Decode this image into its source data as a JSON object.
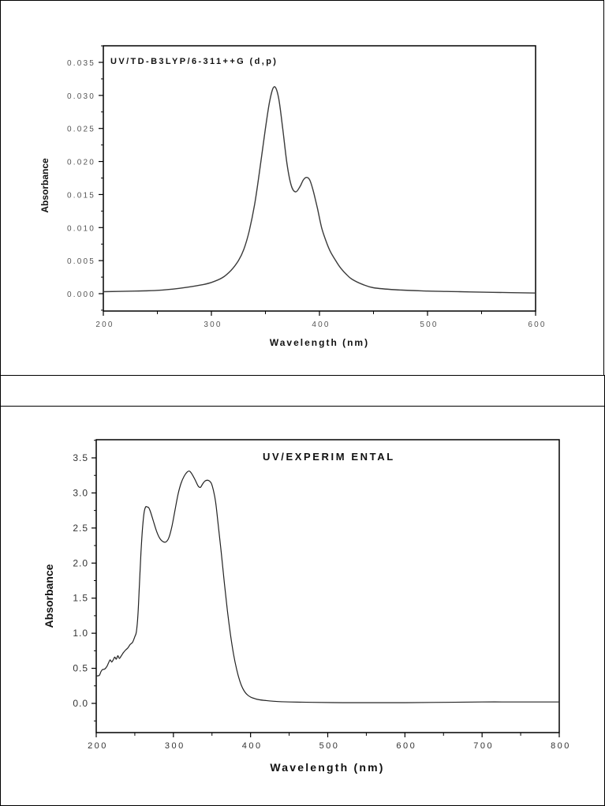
{
  "chart_data": [
    {
      "type": "line",
      "title": "UV/TD-B3LYP/6-311++G(d,p)",
      "annotation": "UV/TD-B3LYP/6-311++G (d,p)",
      "xlabel": "Wavelength (nm)",
      "ylabel": "Absorbance",
      "xlim": [
        200,
        600
      ],
      "ylim": [
        -0.0026,
        0.0375
      ],
      "xticks": [
        200,
        300,
        400,
        500,
        600
      ],
      "xtick_labels": [
        "200",
        "300",
        "400",
        "500",
        "600"
      ],
      "yticks": [
        0.0,
        0.005,
        0.01,
        0.015,
        0.02,
        0.025,
        0.03,
        0.035
      ],
      "ytick_labels": [
        "0.000",
        "0.005",
        "0.010",
        "0.015",
        "0.020",
        "0.025",
        "0.030",
        "0.035"
      ],
      "grid": false,
      "legend": null,
      "series": [
        {
          "name": "UV/TD-B3LYP/6-311++G(d,p)",
          "x": [
            200,
            230,
            250,
            270,
            290,
            300,
            310,
            318,
            325,
            330,
            335,
            340,
            345,
            350,
            354,
            358,
            362,
            366,
            370,
            374,
            378,
            382,
            385,
            388,
            391,
            394,
            398,
            402,
            406,
            410,
            415,
            420,
            425,
            430,
            440,
            450,
            470,
            500,
            530,
            560,
            600
          ],
          "values": [
            0.0003,
            0.0004,
            0.0005,
            0.0008,
            0.0013,
            0.0017,
            0.0024,
            0.0035,
            0.005,
            0.0067,
            0.0095,
            0.0135,
            0.019,
            0.025,
            0.0292,
            0.0313,
            0.0298,
            0.025,
            0.0196,
            0.0163,
            0.0154,
            0.0162,
            0.0172,
            0.0176,
            0.0172,
            0.0157,
            0.013,
            0.01,
            0.008,
            0.0064,
            0.005,
            0.0038,
            0.0029,
            0.0022,
            0.0014,
            0.0009,
            0.0006,
            0.0004,
            0.0003,
            0.0002,
            0.0001
          ]
        }
      ]
    },
    {
      "type": "line",
      "title": "UV/EXPERIMENTAL",
      "annotation": "UV/EXPERIM ENTAL",
      "xlabel": "Wavelength (nm)",
      "ylabel": "Absorbance",
      "xlim": [
        200,
        800
      ],
      "ylim": [
        -0.42,
        3.76
      ],
      "xticks": [
        200,
        300,
        400,
        500,
        600,
        700,
        800
      ],
      "xtick_labels": [
        "200",
        "300",
        "400",
        "500",
        "600",
        "700",
        "800"
      ],
      "yticks": [
        0.0,
        0.5,
        1.0,
        1.5,
        2.0,
        2.5,
        3.0,
        3.5
      ],
      "ytick_labels": [
        "0.0",
        "0.5",
        "1.0",
        "1.5",
        "2.0",
        "2.5",
        "3.0",
        "3.5"
      ],
      "grid": false,
      "legend": null,
      "series": [
        {
          "name": "UV/EXPERIMENTAL",
          "x": [
            200,
            204,
            206,
            208,
            211,
            214,
            216,
            218,
            220,
            222,
            224,
            226,
            228,
            230,
            232,
            235,
            238,
            241,
            244,
            247,
            250,
            252,
            254,
            256,
            258,
            260,
            262,
            264,
            266,
            268,
            270,
            274,
            278,
            282,
            286,
            290,
            294,
            298,
            302,
            306,
            310,
            314,
            318,
            321,
            324,
            328,
            332,
            335,
            338,
            341,
            345,
            349,
            352,
            355,
            358,
            362,
            366,
            370,
            374,
            378,
            382,
            386,
            390,
            395,
            400,
            405,
            410,
            420,
            430,
            450,
            480,
            520,
            560,
            600,
            650,
            700,
            750,
            800
          ],
          "values": [
            0.39,
            0.4,
            0.45,
            0.48,
            0.49,
            0.53,
            0.58,
            0.62,
            0.59,
            0.62,
            0.66,
            0.63,
            0.68,
            0.64,
            0.67,
            0.72,
            0.76,
            0.79,
            0.84,
            0.87,
            0.95,
            1.02,
            1.25,
            1.7,
            2.15,
            2.5,
            2.72,
            2.8,
            2.8,
            2.79,
            2.74,
            2.6,
            2.46,
            2.36,
            2.31,
            2.3,
            2.36,
            2.52,
            2.75,
            2.98,
            3.14,
            3.24,
            3.3,
            3.31,
            3.27,
            3.19,
            3.1,
            3.08,
            3.13,
            3.17,
            3.18,
            3.14,
            3.03,
            2.85,
            2.55,
            2.15,
            1.72,
            1.32,
            0.98,
            0.7,
            0.48,
            0.32,
            0.21,
            0.13,
            0.09,
            0.07,
            0.055,
            0.04,
            0.03,
            0.02,
            0.015,
            0.01,
            0.01,
            0.01,
            0.015,
            0.02,
            0.02,
            0.02
          ]
        }
      ]
    }
  ],
  "panels": {
    "top": {
      "annotation": "UV/TD-B3LYP/6-311++G (d,p)",
      "xlabel": "Wavelength (nm)",
      "ylabel": "Absorbance"
    },
    "bottom": {
      "annotation": "UV/EXPERIM ENTAL",
      "xlabel": "Wavelength (nm)",
      "ylabel": "Absorbance"
    }
  },
  "colors": {
    "line": "#3a3a3a",
    "axis": "#000000",
    "tick_text": "#555555"
  }
}
